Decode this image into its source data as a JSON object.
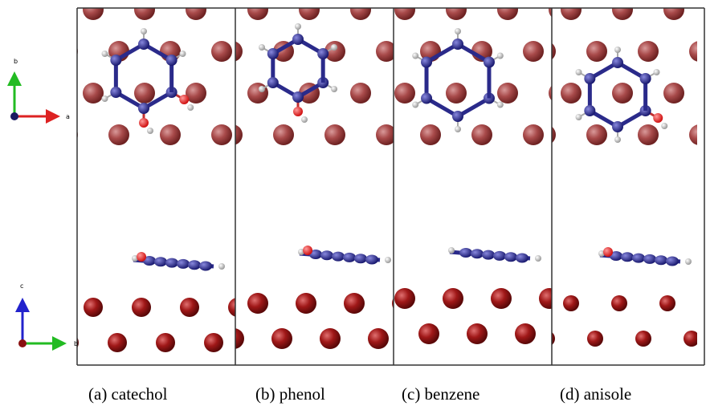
{
  "axes": {
    "top": {
      "vertical": "b",
      "horizontal": "a"
    },
    "bottom": {
      "vertical": "c",
      "horizontal": "b"
    }
  },
  "panels": [
    {
      "label": "(a) catechol"
    },
    {
      "label": "(b) phenol"
    },
    {
      "label": "(c) benzene"
    },
    {
      "label": "(d) anisole"
    }
  ]
}
